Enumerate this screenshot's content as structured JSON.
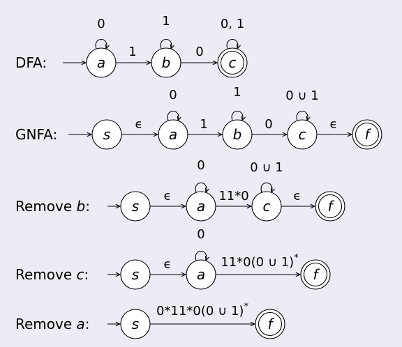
{
  "colors": {
    "background": "#ececf5",
    "ink": "#000000",
    "node_fill": "#ffffff"
  },
  "rows": [
    {
      "label": "DFA:",
      "states": [
        {
          "name": "a",
          "accept": false,
          "loop": "0"
        },
        {
          "name": "b",
          "accept": false,
          "loop": "1"
        },
        {
          "name": "c",
          "accept": true,
          "loop": "0, 1"
        }
      ],
      "transitions": [
        {
          "from": "a",
          "to": "b",
          "label": "1"
        },
        {
          "from": "b",
          "to": "c",
          "label": "0"
        }
      ]
    },
    {
      "label": "GNFA:",
      "states": [
        {
          "name": "s",
          "accept": false,
          "loop": ""
        },
        {
          "name": "a",
          "accept": false,
          "loop": "0"
        },
        {
          "name": "b",
          "accept": false,
          "loop": "1"
        },
        {
          "name": "c",
          "accept": false,
          "loop": "0 ∪ 1"
        },
        {
          "name": "f",
          "accept": true,
          "loop": ""
        }
      ],
      "transitions": [
        {
          "from": "s",
          "to": "a",
          "label": "ϵ"
        },
        {
          "from": "a",
          "to": "b",
          "label": "1"
        },
        {
          "from": "b",
          "to": "c",
          "label": "0"
        },
        {
          "from": "c",
          "to": "f",
          "label": "ϵ"
        }
      ]
    },
    {
      "label_prefix": "Remove ",
      "label_var": "b",
      "label_suffix": ":",
      "states": [
        {
          "name": "s",
          "accept": false,
          "loop": ""
        },
        {
          "name": "a",
          "accept": false,
          "loop": "0"
        },
        {
          "name": "c",
          "accept": false,
          "loop": "0 ∪ 1"
        },
        {
          "name": "f",
          "accept": true,
          "loop": ""
        }
      ],
      "transitions": [
        {
          "from": "s",
          "to": "a",
          "label": "ϵ"
        },
        {
          "from": "a",
          "to": "c",
          "label": "11*0"
        },
        {
          "from": "c",
          "to": "f",
          "label": "ϵ"
        }
      ]
    },
    {
      "label_prefix": "Remove ",
      "label_var": "c",
      "label_suffix": ":",
      "states": [
        {
          "name": "s",
          "accept": false,
          "loop": ""
        },
        {
          "name": "a",
          "accept": false,
          "loop": "0"
        },
        {
          "name": "f",
          "accept": true,
          "loop": ""
        }
      ],
      "transitions": [
        {
          "from": "s",
          "to": "a",
          "label": "ϵ"
        },
        {
          "from": "a",
          "to": "f",
          "label": "11*0(0 ∪ 1)",
          "sup": "*"
        }
      ]
    },
    {
      "label_prefix": "Remove ",
      "label_var": "a",
      "label_suffix": ":",
      "states": [
        {
          "name": "s",
          "accept": false,
          "loop": ""
        },
        {
          "name": "f",
          "accept": true,
          "loop": ""
        }
      ],
      "transitions": [
        {
          "from": "s",
          "to": "f",
          "label": "0*11*0(0 ∪ 1)",
          "sup": "*"
        }
      ]
    }
  ]
}
